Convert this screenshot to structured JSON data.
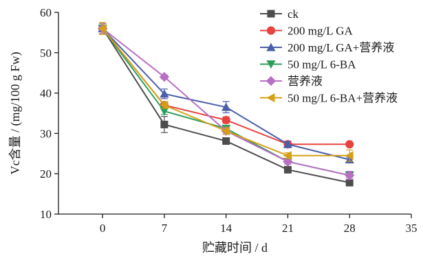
{
  "chart_data": {
    "type": "line",
    "title": "",
    "xlabel": "贮藏时间 / d",
    "ylabel": "Vc含量 / (mg/100 g Fw)",
    "xlim": [
      -5,
      35
    ],
    "ylim": [
      10,
      60
    ],
    "xticks": [
      0,
      7,
      14,
      21,
      28,
      35
    ],
    "yticks": [
      10,
      20,
      30,
      40,
      50,
      60
    ],
    "xtick_labels": [
      "0",
      "7",
      "14",
      "21",
      "28",
      "35"
    ],
    "ytick_labels": [
      "10",
      "20",
      "30",
      "40",
      "50",
      "60"
    ],
    "grid": false,
    "legend_position": "top-right",
    "x": [
      0,
      7,
      14,
      21,
      28
    ],
    "series": [
      {
        "name": "ck",
        "color": "#4d4d4d",
        "marker": "square",
        "values": [
          56,
          32.2,
          28.1,
          21,
          17.8
        ],
        "errors": [
          1.2,
          2.0,
          0.6,
          0.6,
          0.5
        ]
      },
      {
        "name": "200 mg/L GA",
        "color": "#e8423f",
        "marker": "circle",
        "values": [
          56,
          37,
          33.3,
          27.3,
          27.3
        ],
        "errors": [
          1.2,
          0.8,
          0.8,
          0.8,
          0.5
        ]
      },
      {
        "name": "200 mg/L GA+营养液",
        "color": "#4a5fa8",
        "marker": "triangle-up",
        "values": [
          56,
          39.8,
          36.5,
          27.3,
          23.5
        ],
        "errors": [
          1.2,
          1.2,
          1.4,
          0.7,
          0.6
        ]
      },
      {
        "name": "50 mg/L 6-BA",
        "color": "#2e9e5b",
        "marker": "triangle-down",
        "values": [
          56,
          35.5,
          31.2,
          23,
          19.6
        ],
        "errors": [
          1.2,
          0.8,
          0.8,
          0.6,
          0.5
        ]
      },
      {
        "name": "营养液",
        "color": "#b86fc4",
        "marker": "diamond",
        "values": [
          56,
          44,
          30.6,
          23,
          19.6
        ],
        "errors": [
          1.2,
          0.5,
          0.8,
          0.6,
          1.0
        ]
      },
      {
        "name": "50 mg/L 6-BA+营养液",
        "color": "#d4a017",
        "marker": "triangle-left",
        "values": [
          56,
          37,
          30.6,
          24.5,
          24.5
        ],
        "errors": [
          1.5,
          0.8,
          0.8,
          0.7,
          1.4
        ]
      }
    ]
  }
}
